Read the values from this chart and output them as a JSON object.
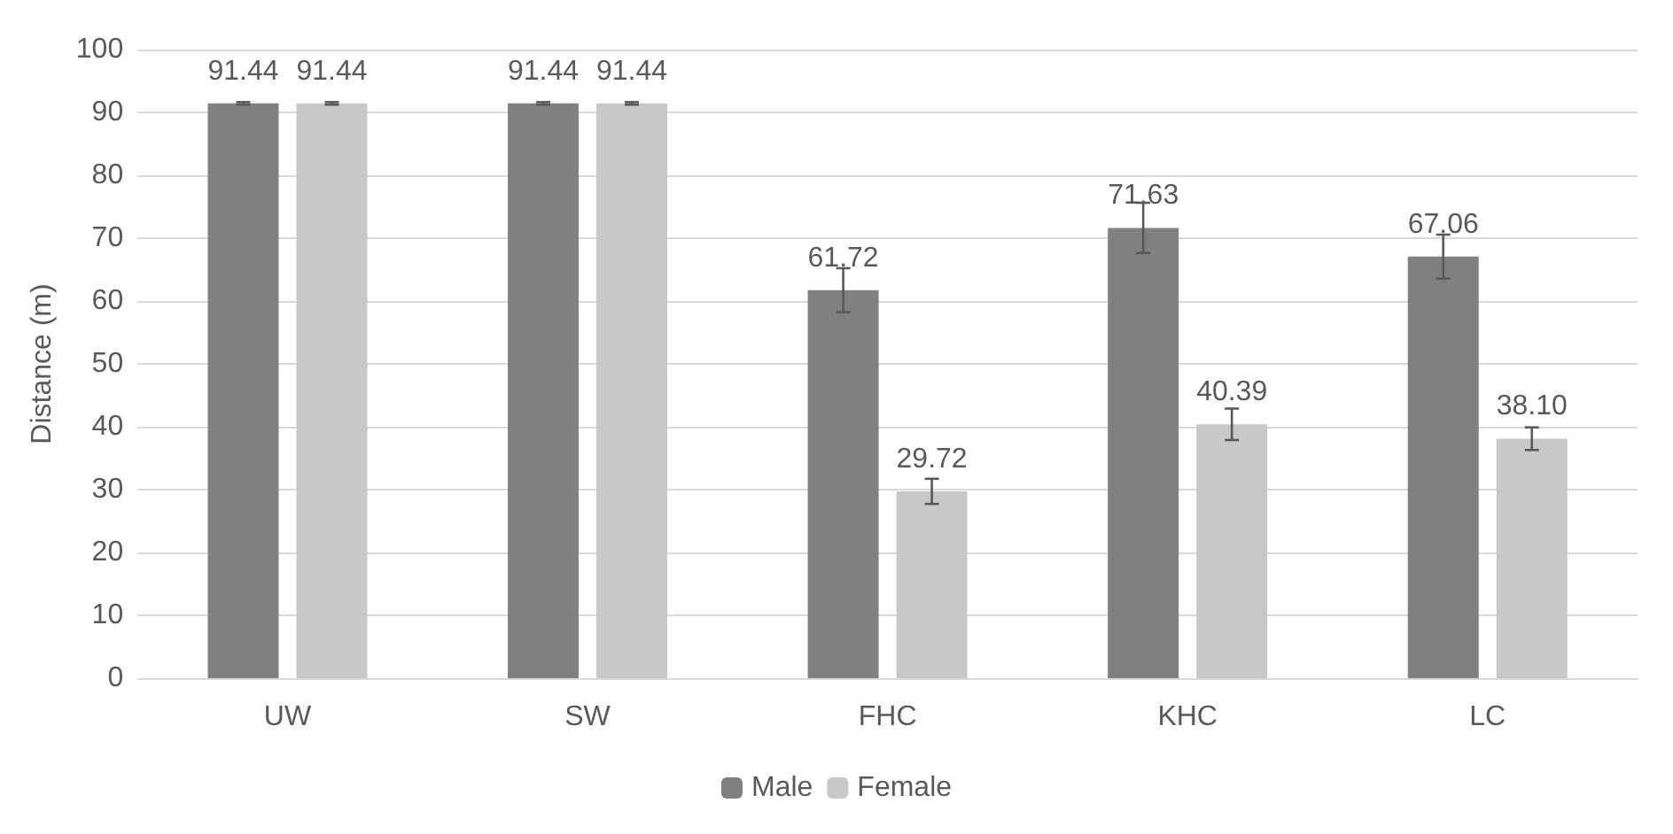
{
  "chart_data": {
    "type": "bar",
    "ylabel": "Distance (m)",
    "categories": [
      "UW",
      "SW",
      "FHC",
      "KHC",
      "LC"
    ],
    "series": [
      {
        "name": "Male",
        "color": "#808080",
        "values": [
          91.44,
          91.44,
          61.72,
          71.63,
          67.06
        ],
        "value_labels": [
          "91.44",
          "91.44",
          "61.72",
          "71.63",
          "67.06"
        ],
        "errors": [
          0.2,
          0.2,
          3.5,
          4,
          3.5
        ]
      },
      {
        "name": "Female",
        "color": "#c8c8c8",
        "values": [
          91.44,
          91.44,
          29.72,
          40.39,
          38.1
        ],
        "value_labels": [
          "91.44",
          "91.44",
          "29.72",
          "40.39",
          "38.10"
        ],
        "errors": [
          0.2,
          0.2,
          2,
          2.5,
          1.8
        ]
      }
    ],
    "ylim": [
      0,
      100
    ],
    "yticks": [
      0,
      10,
      20,
      30,
      40,
      50,
      60,
      70,
      80,
      90,
      100
    ],
    "grid": "y",
    "legend": "bottom"
  }
}
